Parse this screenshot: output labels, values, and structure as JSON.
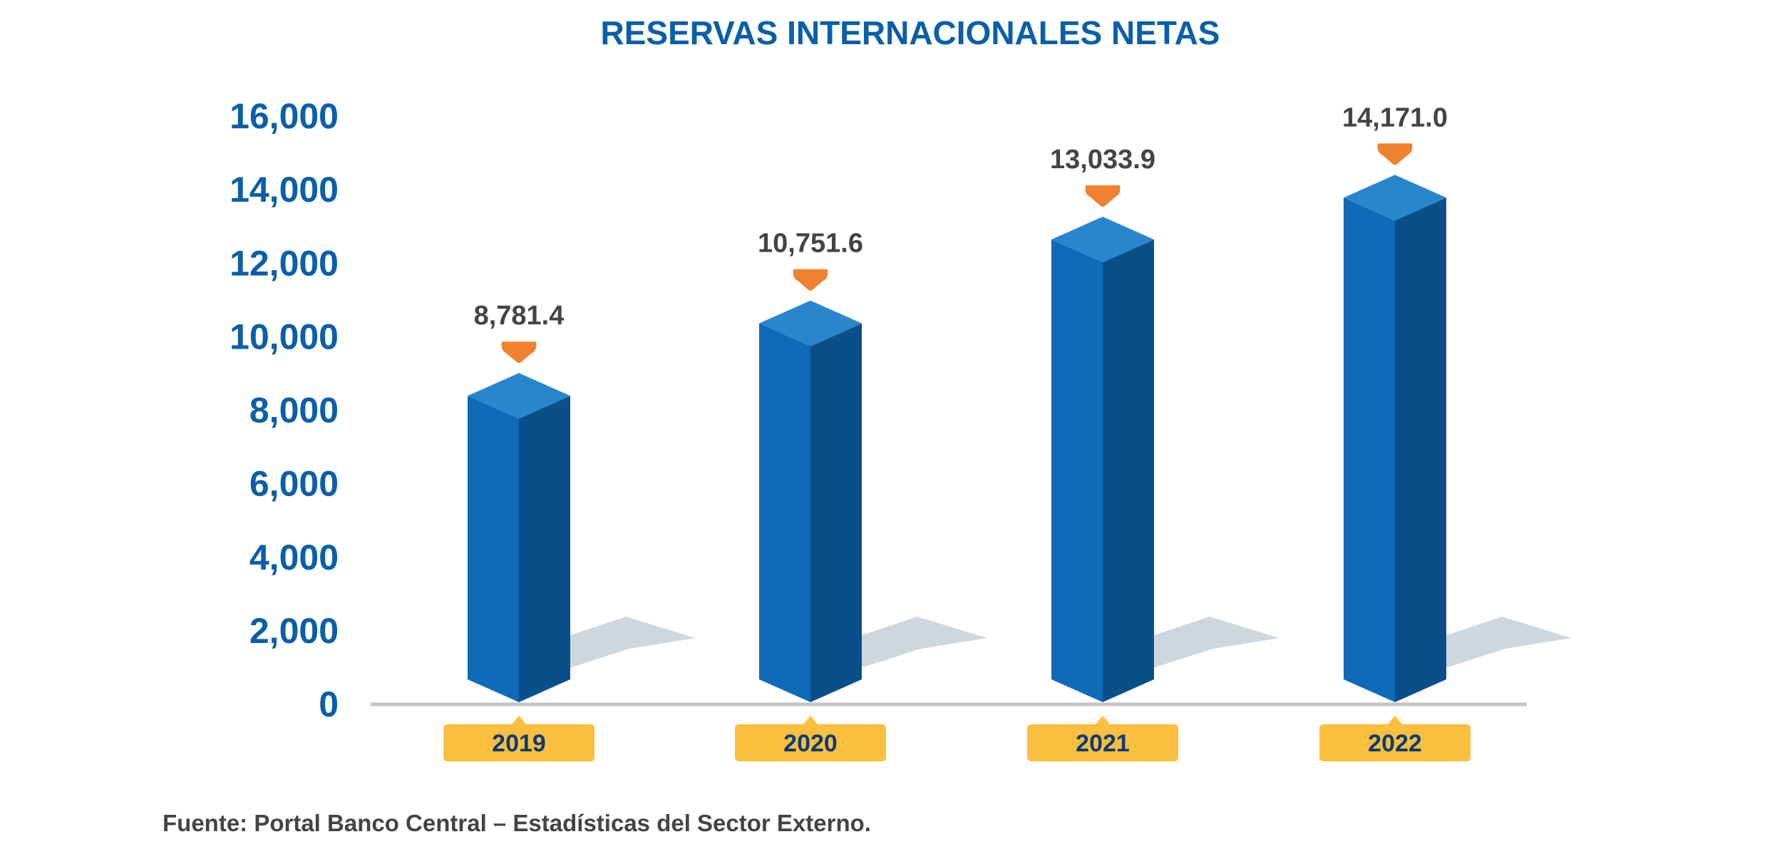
{
  "chart_data": {
    "type": "bar",
    "title": "RESERVAS INTERNACIONALES NETAS",
    "categories": [
      "2019",
      "2020",
      "2021",
      "2022"
    ],
    "values": [
      8781.4,
      10751.6,
      13033.9,
      14171.0
    ],
    "data_labels": [
      "8,781.4",
      "10,751.6",
      "13,033.9",
      "14,171.0"
    ],
    "yticks": [
      "0",
      "2,000",
      "4,000",
      "6,000",
      "8,000",
      "10,000",
      "12,000",
      "14,000",
      "16,000"
    ],
    "ylim": [
      0,
      16000
    ],
    "grid": false,
    "legend": "none",
    "source": "Fuente: Portal Banco Central – Estadísticas del Sector Externo.",
    "colors": {
      "bar_front": "#0f6ab8",
      "bar_side": "#0b4f8a",
      "bar_top": "#2a86cc",
      "shadow": "#cfd7de",
      "marker": "#f0812e",
      "year_badge": "#fbbf3f",
      "axis": "#c4c4c4",
      "title": "#0a5fa8"
    }
  }
}
